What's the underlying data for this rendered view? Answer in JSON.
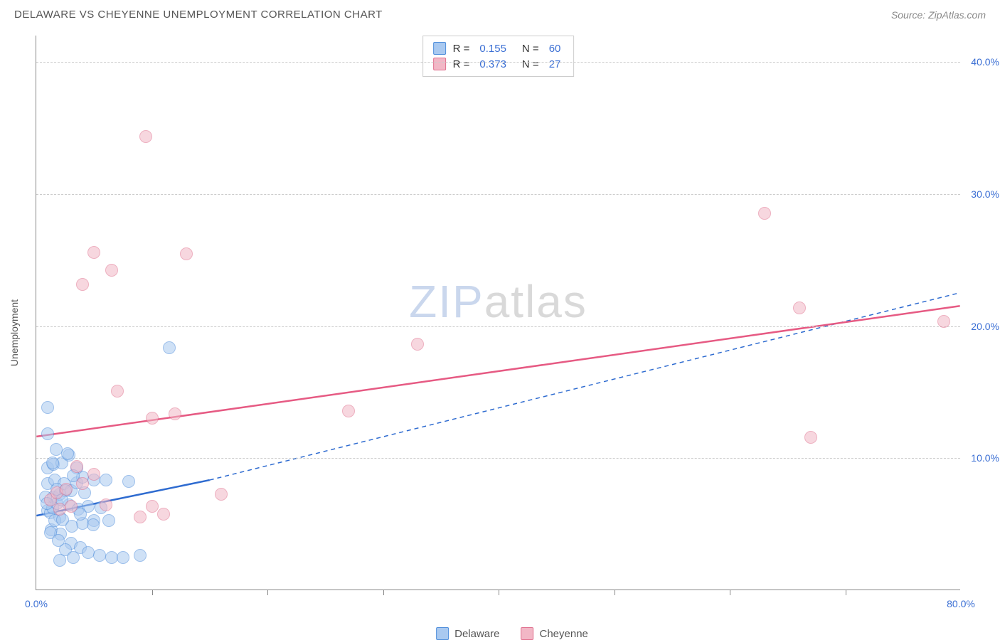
{
  "title": "DELAWARE VS CHEYENNE UNEMPLOYMENT CORRELATION CHART",
  "source": "Source: ZipAtlas.com",
  "y_axis_label": "Unemployment",
  "chart": {
    "type": "scatter",
    "xlim": [
      0,
      80
    ],
    "ylim": [
      0,
      42
    ],
    "x_ticks": [
      0,
      80
    ],
    "x_tick_labels": [
      "0.0%",
      "80.0%"
    ],
    "x_minor_ticks": [
      10,
      20,
      30,
      40,
      50,
      60,
      70
    ],
    "y_ticks": [
      10,
      20,
      30,
      40
    ],
    "y_tick_labels": [
      "10.0%",
      "20.0%",
      "30.0%",
      "40.0%"
    ],
    "grid_color": "#cccccc",
    "axis_color": "#888888",
    "background_color": "#ffffff",
    "point_radius": 9,
    "series": [
      {
        "name": "Delaware",
        "fill": "#a9c9f0",
        "stroke": "#4f8edb",
        "fill_opacity": 0.55,
        "points": [
          [
            1,
            6
          ],
          [
            1.2,
            5.8
          ],
          [
            1.4,
            6.2
          ],
          [
            1.5,
            7
          ],
          [
            1.8,
            6.5
          ],
          [
            2,
            5.5
          ],
          [
            2,
            7.2
          ],
          [
            1,
            8
          ],
          [
            1.6,
            8.3
          ],
          [
            2.4,
            8
          ],
          [
            3,
            7.5
          ],
          [
            3.5,
            8.1
          ],
          [
            4,
            8.5
          ],
          [
            5,
            8.3
          ],
          [
            1.3,
            4.5
          ],
          [
            2.1,
            4.2
          ],
          [
            3,
            3.5
          ],
          [
            3.8,
            3.2
          ],
          [
            2.5,
            3
          ],
          [
            4.5,
            2.8
          ],
          [
            5.5,
            2.6
          ],
          [
            6.5,
            2.4
          ],
          [
            7.5,
            2.4
          ],
          [
            2,
            2.2
          ],
          [
            3.2,
            2.4
          ],
          [
            4,
            5
          ],
          [
            5,
            5.2
          ],
          [
            6,
            8.3
          ],
          [
            8,
            8.2
          ],
          [
            9,
            2.6
          ],
          [
            1,
            9.2
          ],
          [
            1.5,
            9.5
          ],
          [
            2.2,
            9.6
          ],
          [
            3.5,
            9.2
          ],
          [
            2.8,
            10.2
          ],
          [
            1,
            11.8
          ],
          [
            1,
            13.8
          ],
          [
            11.5,
            18.3
          ],
          [
            2.8,
            6.4
          ],
          [
            3.6,
            6.1
          ],
          [
            4.5,
            6.3
          ],
          [
            1.8,
            7.6
          ],
          [
            2.5,
            7.5
          ],
          [
            0.8,
            7
          ],
          [
            0.9,
            6.5
          ],
          [
            1.6,
            5.2
          ],
          [
            2.3,
            5.3
          ],
          [
            3.1,
            4.8
          ],
          [
            1.2,
            4.3
          ],
          [
            1.9,
            3.7
          ],
          [
            2.7,
            10.3
          ],
          [
            3.8,
            5.7
          ],
          [
            4.9,
            4.9
          ],
          [
            2.2,
            6.8
          ],
          [
            1.4,
            9.6
          ],
          [
            5.6,
            6.2
          ],
          [
            6.3,
            5.2
          ],
          [
            3.2,
            8.6
          ],
          [
            1.7,
            10.6
          ],
          [
            4.2,
            7.3
          ]
        ],
        "trend": {
          "x1": 0,
          "y1": 5.6,
          "x2": 15,
          "y2": 8.3,
          "solid": true,
          "color": "#2e6bd0",
          "width": 2.5
        },
        "trend_ext": {
          "x1": 15,
          "y1": 8.3,
          "x2": 80,
          "y2": 22.5,
          "dashed": true,
          "color": "#2e6bd0",
          "width": 1.5
        }
      },
      {
        "name": "Cheyenne",
        "fill": "#f2b7c6",
        "stroke": "#e0708e",
        "fill_opacity": 0.55,
        "points": [
          [
            2,
            6.1
          ],
          [
            3,
            6.3
          ],
          [
            3.5,
            9.3
          ],
          [
            4,
            8
          ],
          [
            5,
            8.7
          ],
          [
            6,
            6.4
          ],
          [
            9,
            5.5
          ],
          [
            10,
            6.3
          ],
          [
            11,
            5.7
          ],
          [
            16,
            7.2
          ],
          [
            7,
            15
          ],
          [
            10,
            13
          ],
          [
            12,
            13.3
          ],
          [
            4,
            23.1
          ],
          [
            5,
            25.5
          ],
          [
            6.5,
            24.2
          ],
          [
            13,
            25.4
          ],
          [
            9.5,
            34.3
          ],
          [
            27,
            13.5
          ],
          [
            33,
            18.6
          ],
          [
            63,
            28.5
          ],
          [
            66,
            21.3
          ],
          [
            67,
            11.5
          ],
          [
            78.5,
            20.3
          ],
          [
            1.2,
            6.8
          ],
          [
            1.8,
            7.3
          ],
          [
            2.6,
            7.6
          ]
        ],
        "trend": {
          "x1": 0,
          "y1": 11.6,
          "x2": 80,
          "y2": 21.5,
          "solid": true,
          "color": "#e65a83",
          "width": 2.5
        }
      }
    ]
  },
  "stats_legend": [
    {
      "swatch_fill": "#a9c9f0",
      "swatch_stroke": "#4f8edb",
      "r": "0.155",
      "n": "60"
    },
    {
      "swatch_fill": "#f2b7c6",
      "swatch_stroke": "#e0708e",
      "r": "0.373",
      "n": "27"
    }
  ],
  "bottom_legend": [
    {
      "label": "Delaware",
      "fill": "#a9c9f0",
      "stroke": "#4f8edb"
    },
    {
      "label": "Cheyenne",
      "fill": "#f2b7c6",
      "stroke": "#e0708e"
    }
  ],
  "watermark": {
    "part1": "ZIP",
    "part2": "atlas"
  },
  "labels": {
    "R": "R",
    "N": "N",
    "eq": "="
  }
}
